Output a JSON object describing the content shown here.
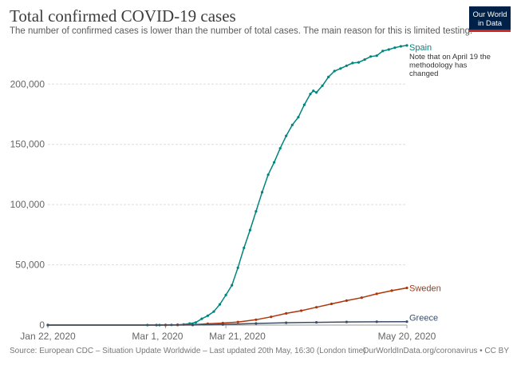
{
  "header": {
    "title": "Total confirmed COVID-19 cases",
    "subtitle": "The number of confirmed cases is lower than the number of total cases. The main reason for this is limited testing."
  },
  "logo": {
    "line1": "Our World",
    "line2": "in Data",
    "bg": "#002147",
    "accent": "#ce261e"
  },
  "footer": {
    "source": "Source: European CDC – Situation Update Worldwide – Last updated 20th May, 16:30 (London time)",
    "link": "OurWorldInData.org/coronavirus • CC BY"
  },
  "chart_data": {
    "type": "line",
    "x_start": "2020-01-22",
    "x_end": "2020-05-20",
    "x_tick_labels": [
      "Jan 22, 2020",
      "Mar 1, 2020",
      "Mar 21, 2020",
      "May 20, 2020"
    ],
    "x_tick_dates": [
      "2020-01-22",
      "2020-03-01",
      "2020-03-21",
      "2020-05-20"
    ],
    "ylim": [
      0,
      230000
    ],
    "y_ticks": [
      0,
      50000,
      100000,
      150000,
      200000
    ],
    "y_tick_labels": [
      "0",
      "50,000",
      "100,000",
      "150,000",
      "200,000"
    ],
    "grid": "horizontal-dashed",
    "series": [
      {
        "name": "Spain",
        "color": "#00847e",
        "note": [
          "Note that on April 19 the",
          "methodology has",
          "changed"
        ],
        "points": [
          [
            "2020-01-22",
            0
          ],
          [
            "2020-02-24",
            2
          ],
          [
            "2020-02-28",
            25
          ],
          [
            "2020-03-01",
            84
          ],
          [
            "2020-03-03",
            165
          ],
          [
            "2020-03-05",
            282
          ],
          [
            "2020-03-07",
            500
          ],
          [
            "2020-03-09",
            1231
          ],
          [
            "2020-03-11",
            2140
          ],
          [
            "2020-03-13",
            5232
          ],
          [
            "2020-03-15",
            7753
          ],
          [
            "2020-03-17",
            11178
          ],
          [
            "2020-03-19",
            17147
          ],
          [
            "2020-03-21",
            24926
          ],
          [
            "2020-03-23",
            33089
          ],
          [
            "2020-03-25",
            47610
          ],
          [
            "2020-03-27",
            64059
          ],
          [
            "2020-03-29",
            78797
          ],
          [
            "2020-03-31",
            94417
          ],
          [
            "2020-04-02",
            110238
          ],
          [
            "2020-04-04",
            124736
          ],
          [
            "2020-04-06",
            135032
          ],
          [
            "2020-04-08",
            146690
          ],
          [
            "2020-04-10",
            157022
          ],
          [
            "2020-04-12",
            166019
          ],
          [
            "2020-04-14",
            172541
          ],
          [
            "2020-04-16",
            182816
          ],
          [
            "2020-04-18",
            191726
          ],
          [
            "2020-04-19",
            194416
          ],
          [
            "2020-04-20",
            193000
          ],
          [
            "2020-04-22",
            198674
          ],
          [
            "2020-04-24",
            205905
          ],
          [
            "2020-04-26",
            210773
          ],
          [
            "2020-04-28",
            212917
          ],
          [
            "2020-04-30",
            215216
          ],
          [
            "2020-05-02",
            217466
          ],
          [
            "2020-05-04",
            218011
          ],
          [
            "2020-05-06",
            220325
          ],
          [
            "2020-05-08",
            222857
          ],
          [
            "2020-05-10",
            223578
          ],
          [
            "2020-05-12",
            227436
          ],
          [
            "2020-05-14",
            228691
          ],
          [
            "2020-05-16",
            230183
          ],
          [
            "2020-05-18",
            231350
          ],
          [
            "2020-05-20",
            232037
          ]
        ]
      },
      {
        "name": "Sweden",
        "color": "#b13507",
        "points": [
          [
            "2020-01-22",
            0
          ],
          [
            "2020-03-01",
            14
          ],
          [
            "2020-03-05",
            94
          ],
          [
            "2020-03-10",
            355
          ],
          [
            "2020-03-15",
            1040
          ],
          [
            "2020-03-20",
            1639
          ],
          [
            "2020-03-25",
            2526
          ],
          [
            "2020-03-31",
            4435
          ],
          [
            "2020-04-05",
            6830
          ],
          [
            "2020-04-10",
            9685
          ],
          [
            "2020-04-15",
            11927
          ],
          [
            "2020-04-20",
            14777
          ],
          [
            "2020-04-25",
            17567
          ],
          [
            "2020-04-30",
            20302
          ],
          [
            "2020-05-05",
            22721
          ],
          [
            "2020-05-10",
            25921
          ],
          [
            "2020-05-15",
            28582
          ],
          [
            "2020-05-20",
            30799
          ]
        ]
      },
      {
        "name": "Greece",
        "color": "#3c4e66",
        "points": [
          [
            "2020-01-22",
            0
          ],
          [
            "2020-02-27",
            1
          ],
          [
            "2020-03-10",
            89
          ],
          [
            "2020-03-20",
            495
          ],
          [
            "2020-03-31",
            1314
          ],
          [
            "2020-04-10",
            1955
          ],
          [
            "2020-04-20",
            2235
          ],
          [
            "2020-04-30",
            2591
          ],
          [
            "2020-05-10",
            2710
          ],
          [
            "2020-05-20",
            2840
          ]
        ]
      }
    ]
  }
}
